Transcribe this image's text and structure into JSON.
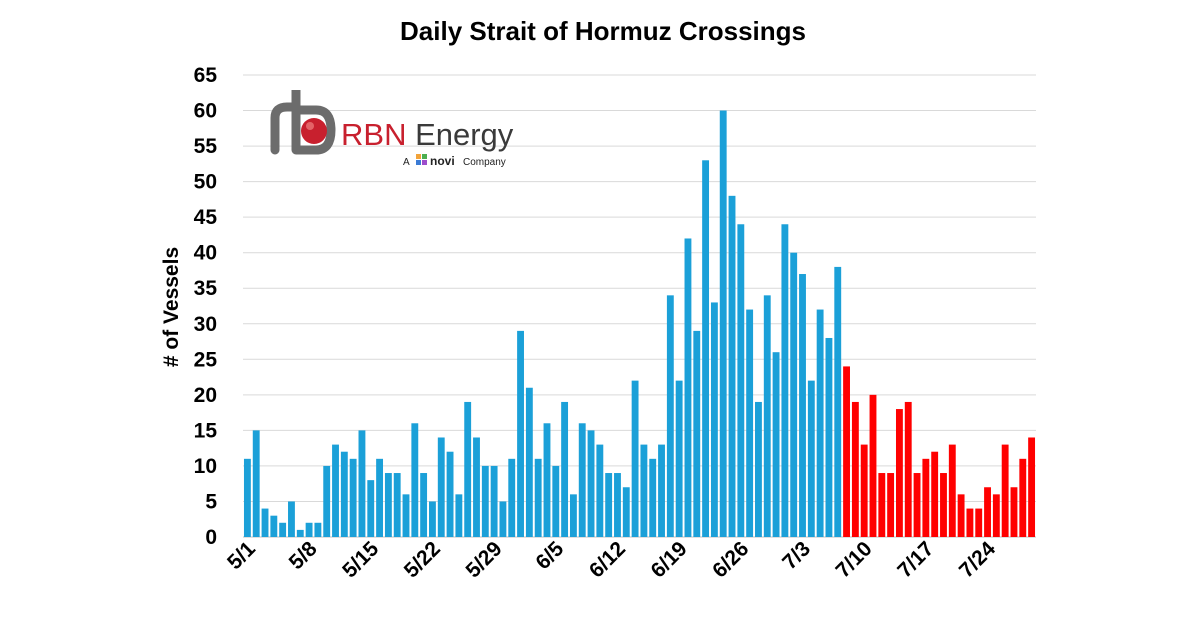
{
  "chart_data": {
    "type": "bar",
    "title": "Daily Strait of Hormuz Crossings",
    "ylabel": "# of Vessels",
    "xlabel": "",
    "ylim": [
      0,
      65
    ],
    "yticks": [
      "0",
      "5",
      "10",
      "15",
      "20",
      "25",
      "30",
      "35",
      "40",
      "45",
      "50",
      "55",
      "60",
      "65"
    ],
    "grid": "horizontal",
    "x_tick_labels": [
      {
        "label": "5/1",
        "day_index": 0
      },
      {
        "label": "5/8",
        "day_index": 7
      },
      {
        "label": "5/15",
        "day_index": 14
      },
      {
        "label": "5/22",
        "day_index": 21
      },
      {
        "label": "5/29",
        "day_index": 28
      },
      {
        "label": "6/5",
        "day_index": 35
      },
      {
        "label": "6/12",
        "day_index": 42
      },
      {
        "label": "6/19",
        "day_index": 49
      },
      {
        "label": "6/26",
        "day_index": 56
      },
      {
        "label": "7/3",
        "day_index": 63
      },
      {
        "label": "7/10",
        "day_index": 70
      },
      {
        "label": "7/17",
        "day_index": 77
      },
      {
        "label": "7/24",
        "day_index": 84
      }
    ],
    "series": [
      {
        "color": "#1ba0d8",
        "start_index": 0,
        "values": [
          11,
          15,
          4,
          3,
          2,
          5,
          1,
          2,
          2,
          10,
          13,
          12,
          11,
          15,
          8,
          11,
          9,
          9,
          6,
          16,
          9,
          5,
          14,
          12,
          6,
          19,
          14,
          10,
          10,
          5,
          11,
          29,
          21,
          11,
          16,
          10,
          19,
          6,
          16,
          15,
          13,
          9,
          9,
          7,
          22,
          13,
          11,
          13,
          34,
          22,
          42,
          29,
          53,
          33,
          60,
          48,
          44,
          32,
          19,
          34,
          26,
          44,
          40,
          37,
          22,
          32,
          28,
          38
        ]
      },
      {
        "color": "#ff0000",
        "start_index": 68,
        "values": [
          24,
          19,
          13,
          20,
          9,
          9,
          18,
          19,
          9,
          11,
          12,
          9,
          13,
          6,
          4,
          4,
          7,
          6,
          13,
          7,
          11,
          14
        ]
      }
    ]
  },
  "logo": {
    "text_rbn": "RBN",
    "text_energy": " Energy",
    "sub_a": "A",
    "sub_novi": "novi",
    "sub_company": "Company",
    "accent_color": "#c8202e",
    "icon_name": "rbn-logo-icon"
  }
}
